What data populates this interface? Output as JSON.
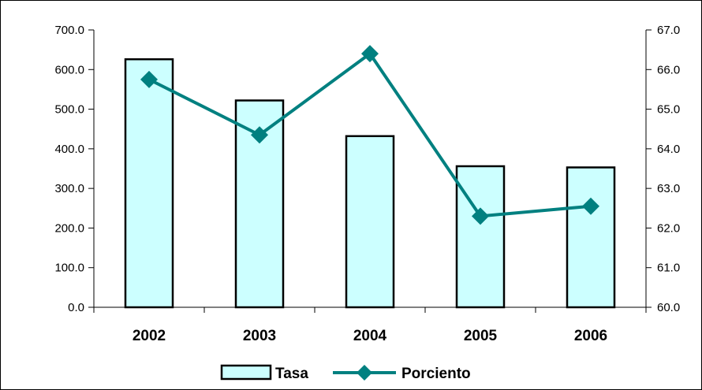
{
  "colors": {
    "bar_fill": "#CCFFFF",
    "bar_stroke": "#000000",
    "line": "#008080",
    "axis": "#000000"
  },
  "chart_data": {
    "type": "bar",
    "categories": [
      "2002",
      "2003",
      "2004",
      "2005",
      "2006"
    ],
    "series": [
      {
        "name": "Tasa",
        "type": "bar",
        "axis": "left",
        "values": [
          626,
          522,
          432,
          356,
          353
        ]
      },
      {
        "name": "Porciento",
        "type": "line",
        "axis": "right",
        "marker": "diamond",
        "values": [
          65.75,
          64.35,
          66.4,
          62.3,
          62.55
        ]
      }
    ],
    "y_left": {
      "ylim": [
        0,
        700
      ],
      "ticks": [
        0,
        100,
        200,
        300,
        400,
        500,
        600,
        700
      ],
      "tick_labels": [
        "0.0",
        "100.0",
        "200.0",
        "300.0",
        "400.0",
        "500.0",
        "600.0",
        "700.0"
      ]
    },
    "y_right": {
      "ylim": [
        60,
        67
      ],
      "ticks": [
        60,
        61,
        62,
        63,
        64,
        65,
        66,
        67
      ],
      "tick_labels": [
        "60.0",
        "61.0",
        "62.0",
        "63.0",
        "64.0",
        "65.0",
        "66.0",
        "67.0"
      ]
    },
    "legend": {
      "position": "bottom",
      "entries": [
        "Tasa",
        "Porciento"
      ]
    },
    "grid": false,
    "title": "",
    "xlabel": "",
    "ylabel": ""
  }
}
